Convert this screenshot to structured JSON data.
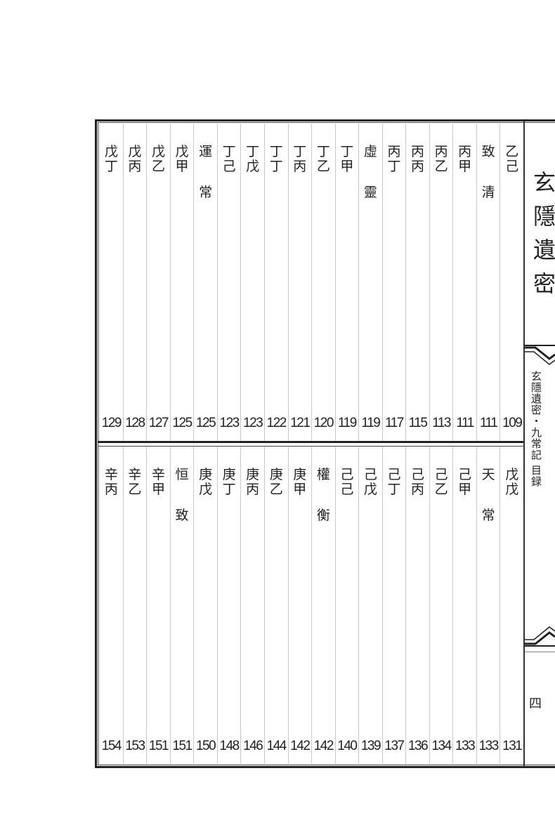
{
  "top_row": [
    {
      "title": "乙己",
      "page": "109"
    },
    {
      "title": "致清",
      "page": "111",
      "heading": true
    },
    {
      "title": "丙甲",
      "page": "111"
    },
    {
      "title": "丙乙",
      "page": "113"
    },
    {
      "title": "丙丙",
      "page": "115"
    },
    {
      "title": "丙丁",
      "page": "117"
    },
    {
      "title": "虛靈",
      "page": "119",
      "heading": true
    },
    {
      "title": "丁甲",
      "page": "119"
    },
    {
      "title": "丁乙",
      "page": "120"
    },
    {
      "title": "丁丙",
      "page": "121"
    },
    {
      "title": "丁丁",
      "page": "122"
    },
    {
      "title": "丁戊",
      "page": "123"
    },
    {
      "title": "丁己",
      "page": "123"
    },
    {
      "title": "運常",
      "page": "125",
      "heading": true
    },
    {
      "title": "戊甲",
      "page": "125"
    },
    {
      "title": "戊乙",
      "page": "127"
    },
    {
      "title": "戊丙",
      "page": "128"
    },
    {
      "title": "戊丁",
      "page": "129"
    }
  ],
  "bottom_row": [
    {
      "title": "戊戊",
      "page": "131"
    },
    {
      "title": "天常",
      "page": "133",
      "heading": true
    },
    {
      "title": "己甲",
      "page": "133"
    },
    {
      "title": "己乙",
      "page": "134"
    },
    {
      "title": "己丙",
      "page": "136"
    },
    {
      "title": "己丁",
      "page": "137"
    },
    {
      "title": "己戊",
      "page": "139"
    },
    {
      "title": "己己",
      "page": "140"
    },
    {
      "title": "權衡",
      "page": "142",
      "heading": true
    },
    {
      "title": "庚甲",
      "page": "142"
    },
    {
      "title": "庚乙",
      "page": "144"
    },
    {
      "title": "庚丙",
      "page": "146"
    },
    {
      "title": "庚丁",
      "page": "148"
    },
    {
      "title": "庚戊",
      "page": "150"
    },
    {
      "title": "恒致",
      "page": "151",
      "heading": true
    },
    {
      "title": "辛甲",
      "page": "151"
    },
    {
      "title": "辛乙",
      "page": "153"
    },
    {
      "title": "辛丙",
      "page": "154"
    }
  ],
  "side": {
    "book_title": "玄隱遺密",
    "banner_text": "玄隱遺密・九常記 目録",
    "page_number": "四"
  }
}
